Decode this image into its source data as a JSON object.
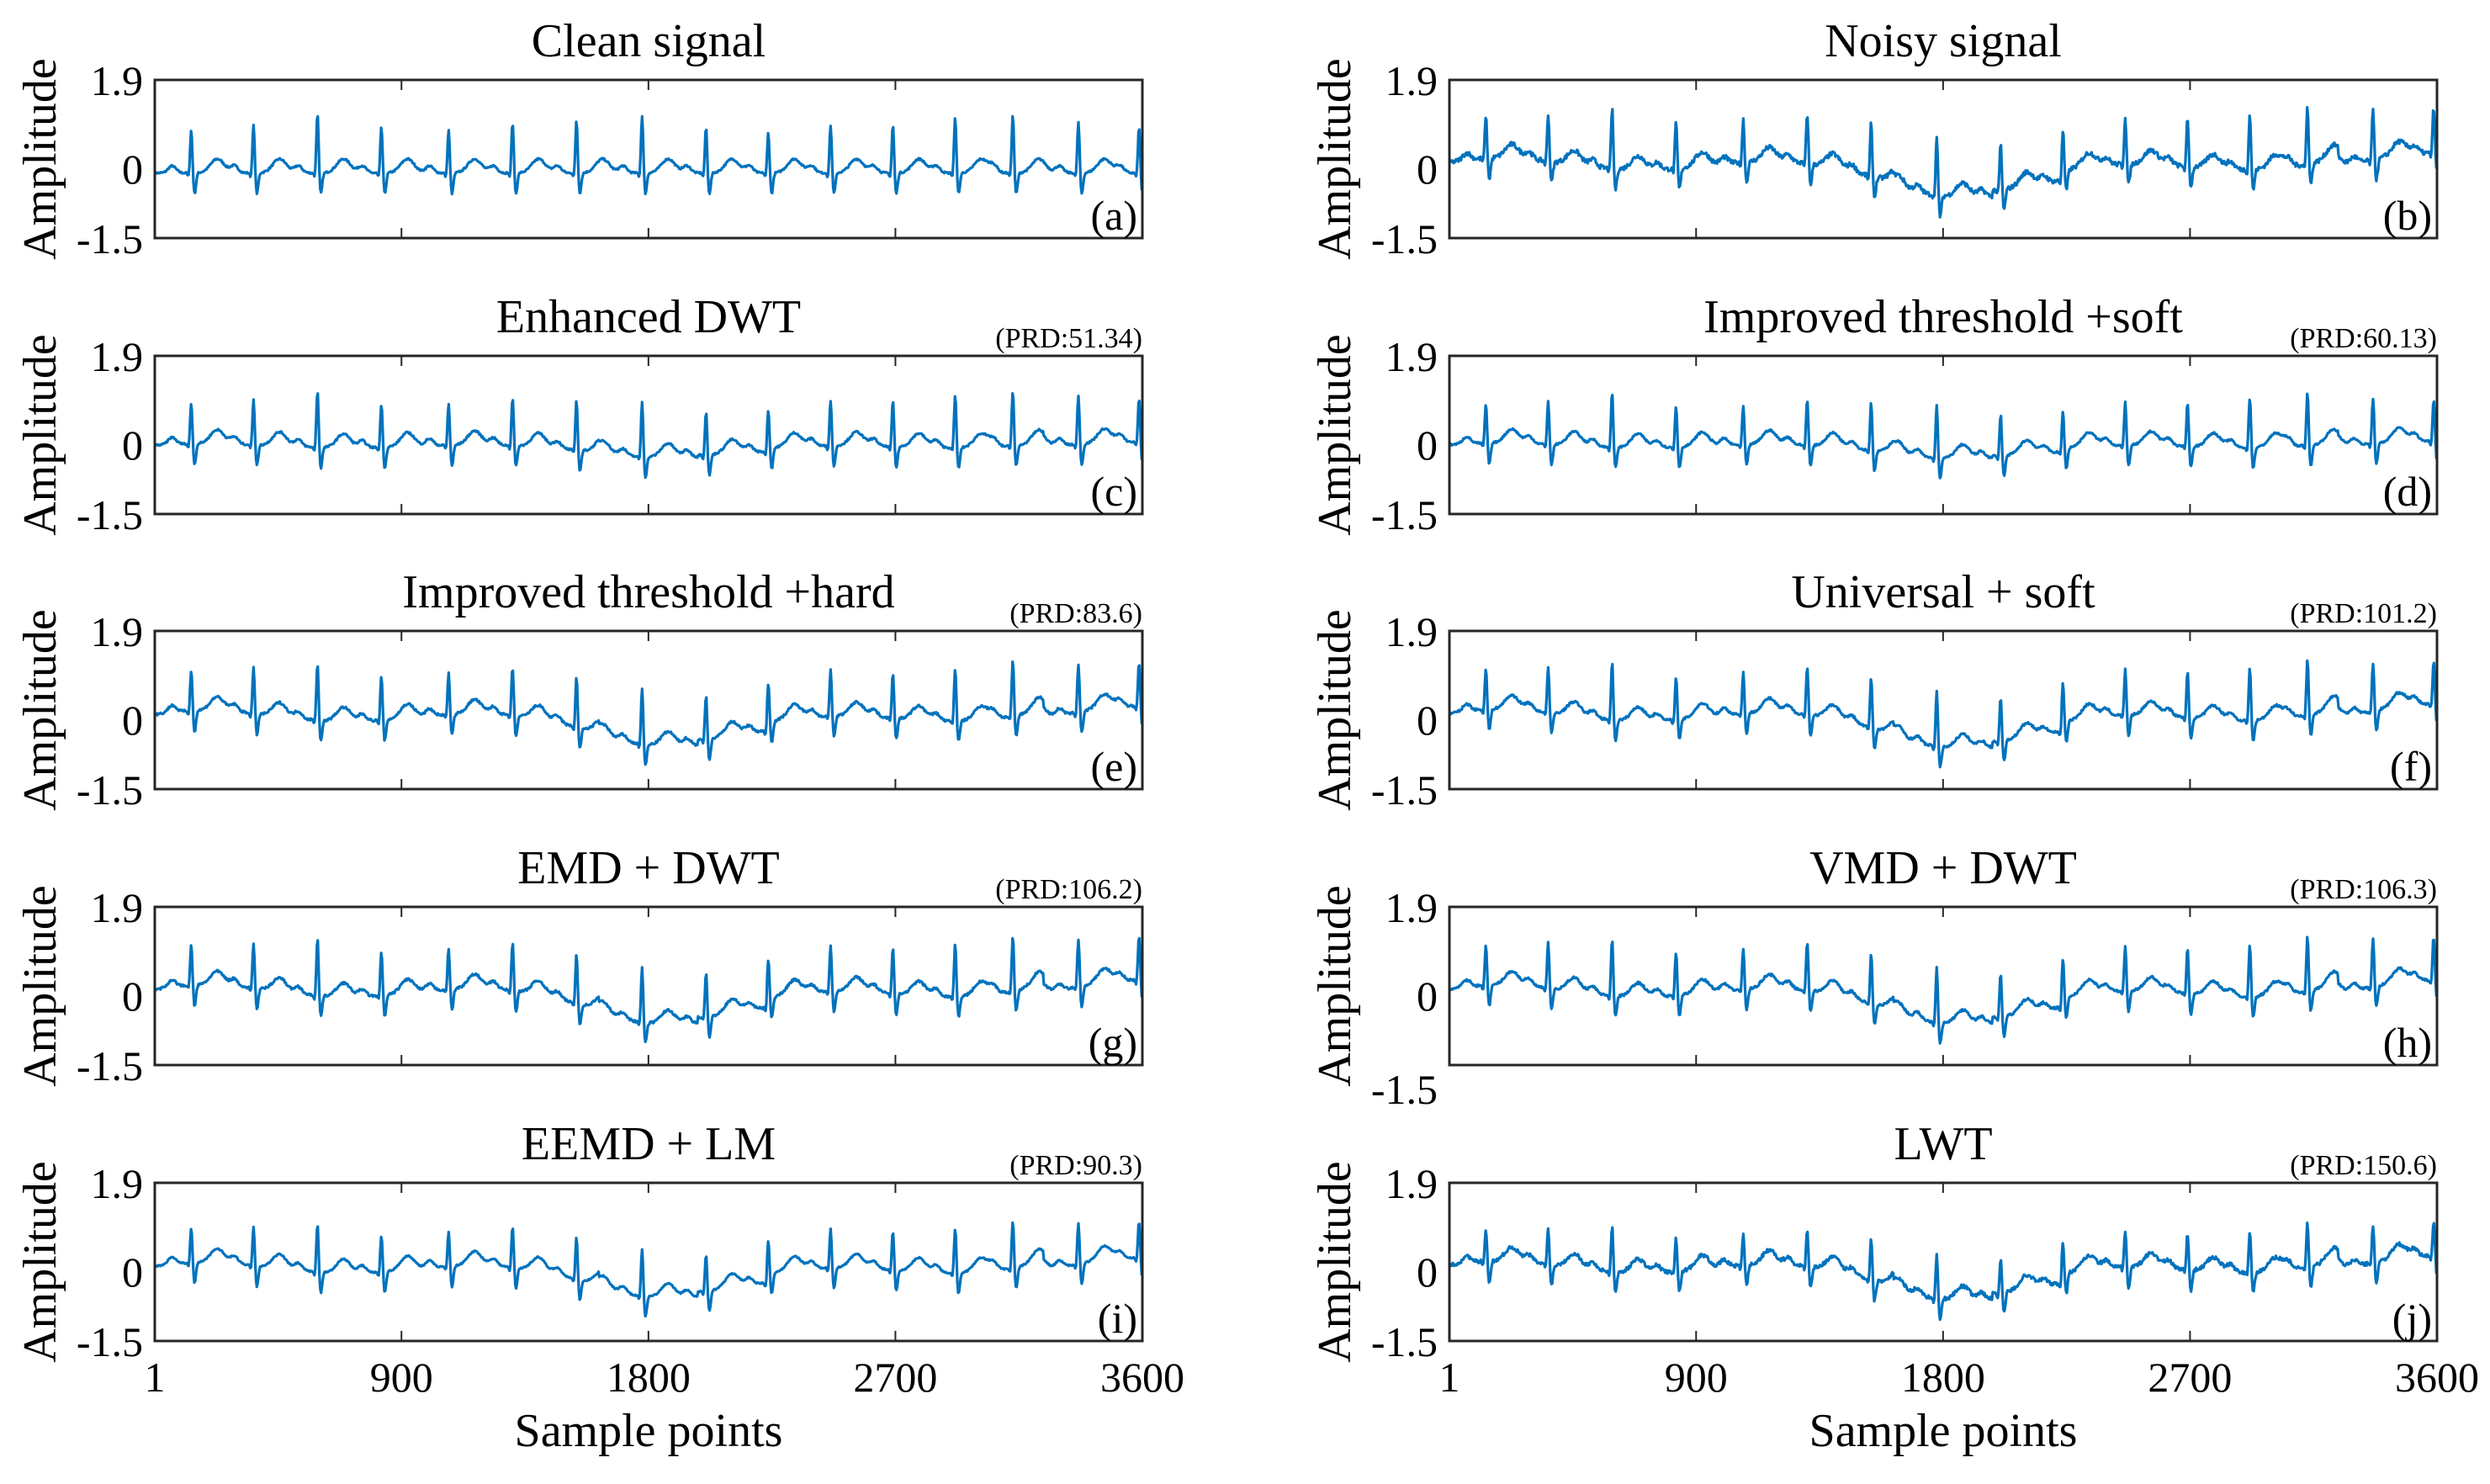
{
  "chart_data": [
    {
      "type": "line",
      "title": "Clean signal",
      "prd": "",
      "letter": "(a)",
      "ylabel": "Amplitude",
      "xlabel": "",
      "ylim": [
        -1.5,
        1.9
      ],
      "yticks": [
        "1.9",
        "0",
        "-1.5"
      ],
      "xlim": [
        1,
        3600
      ],
      "noise": 0.02,
      "wander": 0.0,
      "r_amp": 1.05,
      "series_color": "#0072BD"
    },
    {
      "type": "line",
      "title": "Noisy signal",
      "prd": "",
      "letter": "(b)",
      "ylabel": "Amplitude",
      "xlabel": "",
      "ylim": [
        -1.5,
        1.9
      ],
      "yticks": [
        "1.9",
        "0",
        "-1.5"
      ],
      "xlim": [
        1,
        3600
      ],
      "noise": 0.05,
      "wander": 1.0,
      "r_amp": 1.05,
      "series_color": "#0072BD"
    },
    {
      "type": "line",
      "title": "Enhanced DWT",
      "prd": "(PRD:51.34)",
      "letter": "(c)",
      "ylabel": "Amplitude",
      "xlabel": "",
      "ylim": [
        -1.5,
        1.9
      ],
      "yticks": [
        "1.9",
        "0",
        "-1.5"
      ],
      "xlim": [
        1,
        3600
      ],
      "noise": 0.02,
      "wander": 0.35,
      "r_amp": 1.0,
      "series_color": "#0072BD"
    },
    {
      "type": "line",
      "title": "Improved threshold +soft",
      "prd": "(PRD:60.13)",
      "letter": "(d)",
      "ylabel": "Amplitude",
      "xlabel": "",
      "ylim": [
        -1.5,
        1.9
      ],
      "yticks": [
        "1.9",
        "0",
        "-1.5"
      ],
      "xlim": [
        1,
        3600
      ],
      "noise": 0.02,
      "wander": 0.4,
      "r_amp": 0.95,
      "series_color": "#0072BD"
    },
    {
      "type": "line",
      "title": "Improved threshold +hard",
      "prd": "(PRD:83.6)",
      "letter": "(e)",
      "ylabel": "Amplitude",
      "xlabel": "",
      "ylim": [
        -1.5,
        1.9
      ],
      "yticks": [
        "1.9",
        "0",
        "-1.5"
      ],
      "xlim": [
        1,
        3600
      ],
      "noise": 0.025,
      "wander": 0.9,
      "r_amp": 1.0,
      "series_color": "#0072BD"
    },
    {
      "type": "line",
      "title": "Universal + soft",
      "prd": "(PRD:101.2)",
      "letter": "(f)",
      "ylabel": "Amplitude",
      "xlabel": "",
      "ylim": [
        -1.5,
        1.9
      ],
      "yticks": [
        "1.9",
        "0",
        "-1.5"
      ],
      "xlim": [
        1,
        3600
      ],
      "noise": 0.025,
      "wander": 1.0,
      "r_amp": 1.0,
      "series_color": "#0072BD"
    },
    {
      "type": "line",
      "title": "EMD + DWT",
      "prd": "(PRD:106.2)",
      "letter": "(g)",
      "ylabel": "Amplitude",
      "xlabel": "",
      "ylim": [
        -1.5,
        1.9
      ],
      "yticks": [
        "1.9",
        "0",
        "-1.5"
      ],
      "xlim": [
        1,
        3600
      ],
      "noise": 0.025,
      "wander": 1.0,
      "r_amp": 1.0,
      "series_color": "#0072BD"
    },
    {
      "type": "line",
      "title": "VMD + DWT",
      "prd": "(PRD:106.3)",
      "letter": "(h)",
      "ylabel": "Amplitude",
      "xlabel": "",
      "ylim": [
        -1.5,
        1.9
      ],
      "yticks": [
        "1.9",
        "0",
        "-1.5"
      ],
      "xlim": [
        1,
        3600
      ],
      "noise": 0.025,
      "wander": 1.0,
      "r_amp": 1.0,
      "series_color": "#0072BD"
    },
    {
      "type": "line",
      "title": "EEMD + LM",
      "prd": "(PRD:90.3)",
      "letter": "(i)",
      "ylabel": "Amplitude",
      "xlabel": "Sample points",
      "ylim": [
        -1.5,
        1.9
      ],
      "yticks": [
        "1.9",
        "0",
        "-1.5"
      ],
      "xlim": [
        1,
        3600
      ],
      "xticks": [
        "1",
        "900",
        "1800",
        "2700",
        "3600"
      ],
      "noise": 0.015,
      "wander": 0.9,
      "r_amp": 0.85,
      "series_color": "#0072BD"
    },
    {
      "type": "line",
      "title": "LWT",
      "prd": "(PRD:150.6)",
      "letter": "(j)",
      "ylabel": "Amplitude",
      "xlabel": "Sample points",
      "ylim": [
        -1.5,
        1.9
      ],
      "yticks": [
        "1.9",
        "0",
        "-1.5"
      ],
      "xlim": [
        1,
        3600
      ],
      "xticks": [
        "1",
        "900",
        "1800",
        "2700",
        "3600"
      ],
      "noise": 0.04,
      "wander": 1.0,
      "r_amp": 0.8,
      "series_color": "#0072BD"
    }
  ],
  "r_peaks": [
    134,
    361,
    594,
    827,
    1072,
    1305,
    1538,
    1777,
    2010,
    2237,
    2464,
    2691,
    2918,
    3128,
    3367,
    3588
  ],
  "r_amplitudes": [
    0.9,
    1.0,
    1.25,
    0.95,
    0.9,
    1.05,
    1.1,
    1.2,
    0.95,
    0.85,
    1.0,
    1.0,
    1.15,
    1.2,
    1.05,
    0.95
  ]
}
